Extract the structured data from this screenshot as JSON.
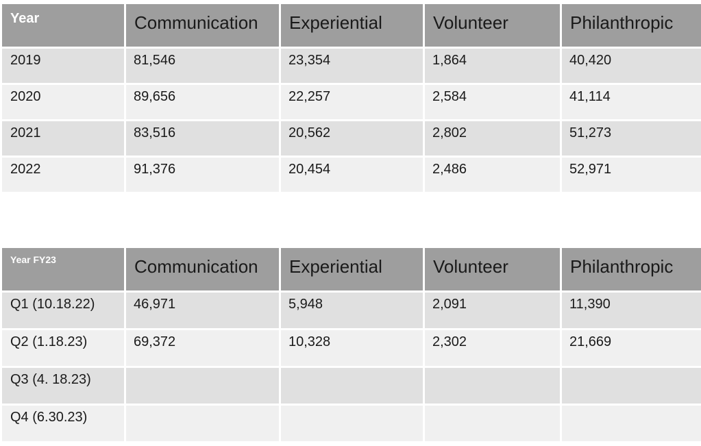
{
  "colors": {
    "header_bg": "#9e9e9e",
    "header_text": "#1a1a1a",
    "row_label_header_text": "#ffffff",
    "row_dark": "#e0e0e0",
    "row_light": "#f0f0f0",
    "body_text": "#1a1a1a",
    "background": "#ffffff"
  },
  "tables": {
    "annual": {
      "headers": [
        "Year",
        "Communication",
        "Experiential",
        "Volunteer",
        "Philanthropic"
      ],
      "rows": [
        {
          "label": "2019",
          "values": [
            "81,546",
            "23,354",
            "1,864",
            "40,420"
          ]
        },
        {
          "label": "2020",
          "values": [
            "89,656",
            "22,257",
            "2,584",
            "41,114"
          ]
        },
        {
          "label": "2021",
          "values": [
            "83,516",
            "20,562",
            "2,802",
            "51,273"
          ]
        },
        {
          "label": "2022",
          "values": [
            "91,376",
            "20,454",
            "2,486",
            "52,971"
          ]
        }
      ]
    },
    "fy23": {
      "headers": [
        "Year FY23",
        "Communication",
        "Experiential",
        "Volunteer",
        "Philanthropic"
      ],
      "rows": [
        {
          "label": "Q1 (10.18.22)",
          "values": [
            "46,971",
            "5,948",
            "2,091",
            "11,390"
          ]
        },
        {
          "label": "Q2 (1.18.23)",
          "values": [
            "69,372",
            "10,328",
            "2,302",
            "21,669"
          ]
        },
        {
          "label": "Q3 (4. 18.23)",
          "values": [
            "",
            "",
            "",
            ""
          ]
        },
        {
          "label": "Q4 (6.30.23)",
          "values": [
            "",
            "",
            "",
            ""
          ]
        }
      ]
    }
  },
  "chart_data": [
    {
      "type": "table",
      "title": "Annual metrics by year",
      "columns": [
        "Year",
        "Communication",
        "Experiential",
        "Volunteer",
        "Philanthropic"
      ],
      "rows": [
        [
          "2019",
          81546,
          23354,
          1864,
          40420
        ],
        [
          "2020",
          89656,
          22257,
          2584,
          41114
        ],
        [
          "2021",
          83516,
          20562,
          2802,
          51273
        ],
        [
          "2022",
          91376,
          20454,
          2486,
          52971
        ]
      ]
    },
    {
      "type": "table",
      "title": "Year FY23 quarterly metrics",
      "columns": [
        "Year FY23",
        "Communication",
        "Experiential",
        "Volunteer",
        "Philanthropic"
      ],
      "rows": [
        [
          "Q1 (10.18.22)",
          46971,
          5948,
          2091,
          11390
        ],
        [
          "Q2 (1.18.23)",
          69372,
          10328,
          2302,
          21669
        ],
        [
          "Q3 (4. 18.23)",
          null,
          null,
          null,
          null
        ],
        [
          "Q4 (6.30.23)",
          null,
          null,
          null,
          null
        ]
      ]
    }
  ]
}
